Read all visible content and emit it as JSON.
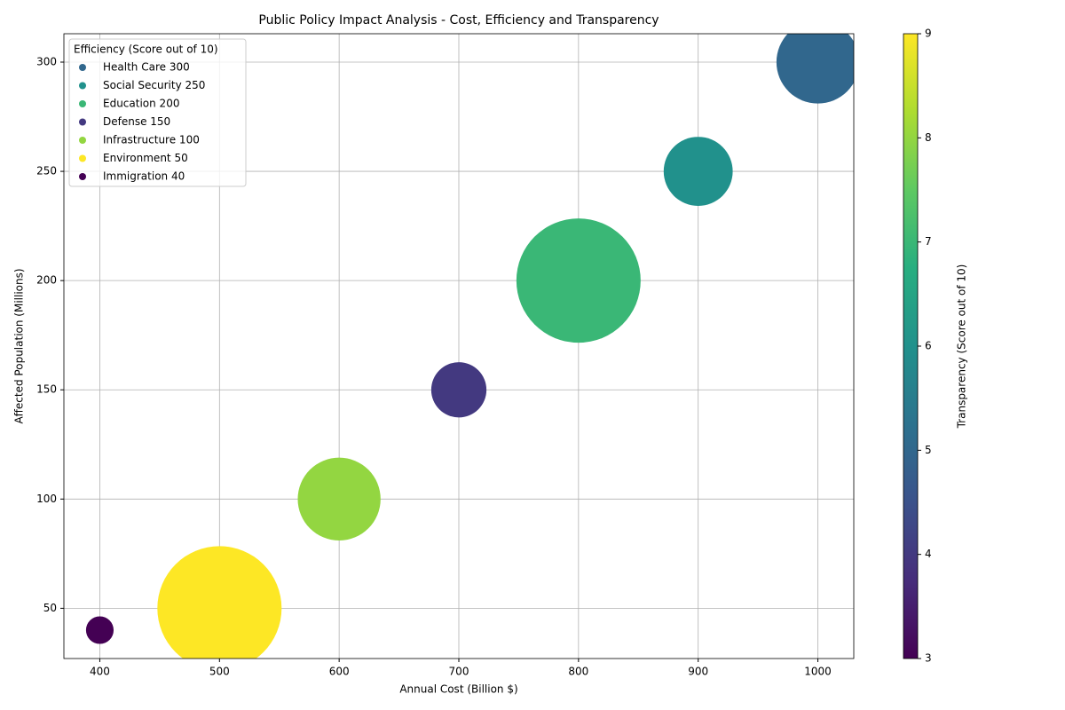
{
  "chart_data": {
    "type": "scatter",
    "title": "Public Policy Impact Analysis - Cost, Efficiency and Transparency",
    "xlabel": "Annual Cost (Billion $)",
    "ylabel": "Affected Population (Millions)",
    "legend_title": "Efficiency (Score out of 10)",
    "legend_position": "upper-left",
    "colorbar_label": "Transparency (Score out of 10)",
    "colormap": "viridis",
    "categories": [
      "Health Care 300",
      "Social Security 250",
      "Education 200",
      "Defense 150",
      "Infrastructure 100",
      "Environment 50",
      "Immigration 40"
    ],
    "x": [
      1000,
      900,
      800,
      700,
      600,
      500,
      400
    ],
    "y": [
      300,
      250,
      200,
      150,
      100,
      50,
      40
    ],
    "size": [
      6,
      5,
      9,
      4,
      6,
      9,
      2
    ],
    "color_values": [
      5,
      6,
      7,
      4,
      8,
      9,
      3
    ],
    "xlim": [
      370,
      1030
    ],
    "xticks": [
      400,
      500,
      600,
      700,
      800,
      900,
      1000
    ],
    "ylim": [
      27,
      313
    ],
    "yticks": [
      50,
      100,
      150,
      200,
      250,
      300
    ],
    "clim": [
      3,
      9
    ],
    "cticks": [
      3,
      4,
      5,
      6,
      7,
      8,
      9
    ],
    "grid": true
  }
}
